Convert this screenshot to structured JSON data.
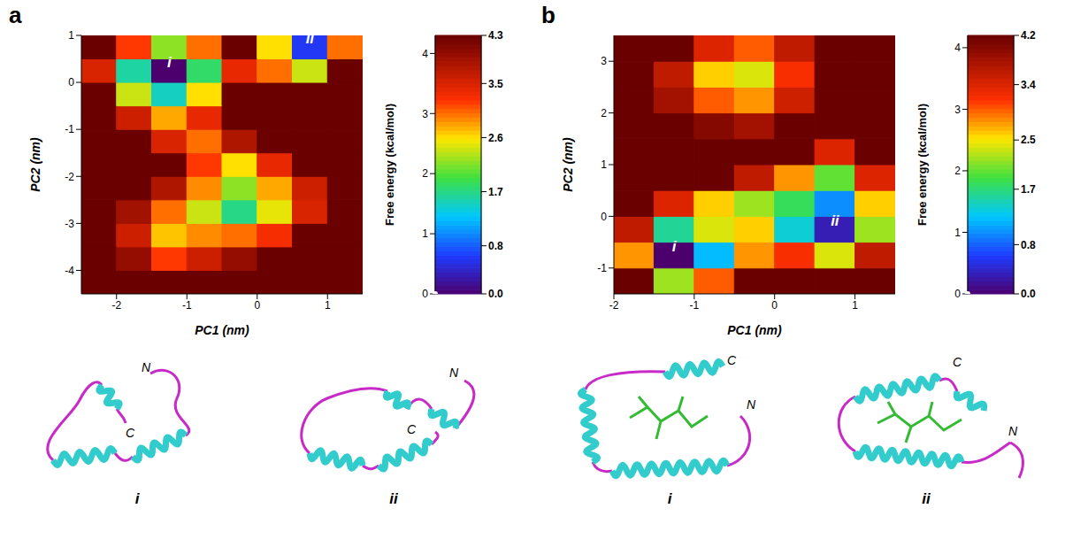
{
  "chart_data": [
    {
      "type": "heatmap",
      "panel_label": "a",
      "xlabel": "PC1 (nm)",
      "ylabel": "PC2 (nm)",
      "x": [
        -2.25,
        -1.75,
        -1.25,
        -0.75,
        -0.25,
        0.25,
        0.75,
        1.25
      ],
      "y": [
        -4.25,
        -3.75,
        -3.25,
        -2.75,
        -2.25,
        -1.75,
        -1.25,
        -0.75,
        -0.25,
        0.25,
        0.75
      ],
      "z": [
        [
          4.3,
          4.3,
          4.3,
          4.3,
          4.3,
          4.3,
          4.3,
          4.3
        ],
        [
          4.3,
          4.0,
          3.2,
          3.6,
          4.0,
          4.3,
          4.3,
          4.3
        ],
        [
          4.3,
          3.6,
          2.7,
          2.9,
          3.0,
          3.3,
          4.3,
          4.3
        ],
        [
          4.3,
          3.9,
          3.0,
          2.4,
          1.7,
          2.5,
          3.5,
          4.3
        ],
        [
          4.3,
          4.3,
          3.8,
          2.9,
          2.2,
          2.8,
          3.6,
          4.3
        ],
        [
          4.3,
          4.3,
          4.3,
          3.2,
          2.6,
          3.4,
          4.3,
          4.3
        ],
        [
          4.3,
          4.3,
          3.5,
          3.0,
          3.8,
          4.3,
          4.3,
          4.3
        ],
        [
          4.3,
          3.6,
          2.8,
          3.4,
          4.3,
          4.3,
          4.3,
          4.3
        ],
        [
          4.3,
          2.4,
          1.5,
          2.6,
          4.3,
          4.3,
          4.3,
          4.3
        ],
        [
          3.5,
          1.6,
          0.0,
          1.8,
          3.4,
          3.0,
          2.4,
          4.3
        ],
        [
          4.3,
          3.2,
          2.2,
          3.0,
          4.3,
          2.6,
          0.6,
          3.0
        ]
      ],
      "xlim": [
        -2.5,
        1.5
      ],
      "ylim": [
        -4.5,
        1
      ],
      "xticks": [
        -2,
        -1,
        0,
        1
      ],
      "yticks": [
        -4,
        -3,
        -2,
        -1,
        0,
        1
      ],
      "zlabel": "Free energy (kcal/mol)",
      "zlim": [
        0,
        4.3
      ],
      "zticks": [
        0,
        1,
        2,
        3,
        4
      ],
      "colorbar_ticks": [
        {
          "value": 0,
          "label": "0.0"
        },
        0.8,
        1.7,
        2.6,
        3.5,
        4.3
      ],
      "annotations": [
        {
          "text": "i",
          "x": -1.25,
          "y": 0.25
        },
        {
          "text": "ii",
          "x": 0.75,
          "y": 0.75
        }
      ],
      "structures": [
        {
          "label": "i",
          "n_terminus": "N",
          "c_terminus": "C"
        },
        {
          "label": "ii",
          "n_terminus": "N",
          "c_terminus": "C"
        }
      ]
    },
    {
      "type": "heatmap",
      "panel_label": "b",
      "xlabel": "PC1 (nm)",
      "ylabel": "PC2 (nm)",
      "x": [
        -1.75,
        -1.25,
        -0.75,
        -0.25,
        0.25,
        0.75,
        1.25
      ],
      "y": [
        -1.25,
        -0.75,
        -0.25,
        0.25,
        0.75,
        1.25,
        1.75,
        2.25,
        2.75,
        3.25
      ],
      "z": [
        [
          4.2,
          2.2,
          3.0,
          4.2,
          4.2,
          4.2,
          4.2
        ],
        [
          2.8,
          0.0,
          1.2,
          2.8,
          3.2,
          2.4,
          3.6
        ],
        [
          3.6,
          1.6,
          2.4,
          2.6,
          1.4,
          0.3,
          2.2
        ],
        [
          4.2,
          3.4,
          2.6,
          2.2,
          1.8,
          1.0,
          2.6
        ],
        [
          4.2,
          4.2,
          4.2,
          3.6,
          2.8,
          2.0,
          3.4
        ],
        [
          4.2,
          4.2,
          4.2,
          4.2,
          4.2,
          3.4,
          4.2
        ],
        [
          4.2,
          4.2,
          4.0,
          3.8,
          4.2,
          4.2,
          4.2
        ],
        [
          4.2,
          3.8,
          3.0,
          2.8,
          3.5,
          4.2,
          4.2
        ],
        [
          4.2,
          3.6,
          2.6,
          2.4,
          3.2,
          4.2,
          4.2
        ],
        [
          4.2,
          4.2,
          3.4,
          3.0,
          3.6,
          4.2,
          4.2
        ]
      ],
      "xlim": [
        -2,
        1.5
      ],
      "ylim": [
        -1.5,
        3.5
      ],
      "xticks": [
        -2,
        -1,
        0,
        1
      ],
      "yticks": [
        -1,
        0,
        1,
        2,
        3
      ],
      "zlabel": "Free energy (kcal/mol)",
      "zlim": [
        0,
        4.2
      ],
      "zticks": [
        0,
        1,
        2,
        3,
        4
      ],
      "colorbar_ticks": [
        {
          "value": 0,
          "label": "0.0"
        },
        0.8,
        1.7,
        2.5,
        3.4,
        4.2
      ],
      "annotations": [
        {
          "text": "i",
          "x": -1.25,
          "y": -0.75
        },
        {
          "text": "ii",
          "x": 0.75,
          "y": -0.25
        }
      ],
      "structures": [
        {
          "label": "i",
          "n_terminus": "N",
          "c_terminus": "C"
        },
        {
          "label": "ii",
          "n_terminus": "N",
          "c_terminus": "C"
        }
      ]
    }
  ]
}
